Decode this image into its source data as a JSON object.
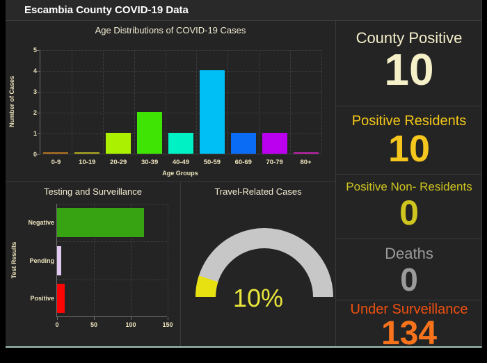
{
  "header": {
    "title": "Escambia County COVID-19 Data"
  },
  "chart_data": [
    {
      "type": "bar",
      "title": "Age Distributions of COVID-19 Cases",
      "xlabel": "Age Groups",
      "ylabel": "Number of Cases",
      "categories": [
        "0-9",
        "10-19",
        "20-29",
        "30-39",
        "40-49",
        "50-59",
        "60-69",
        "70-79",
        "80+"
      ],
      "values": [
        0,
        0,
        1,
        2,
        1,
        4,
        1,
        1,
        0
      ],
      "bar_colors": [
        "#b5731d",
        "#b2ab1e",
        "#aaf000",
        "#3fe405",
        "#00f2c4",
        "#00bff5",
        "#0a6cf5",
        "#bb00f0",
        "#c122ad"
      ],
      "ylim": [
        0,
        5
      ],
      "yticks": [
        0,
        1,
        2,
        3,
        4,
        5
      ],
      "grid": "dotted"
    },
    {
      "type": "bar",
      "orientation": "horizontal",
      "title": "Testing and Surveillance",
      "ylabel": "Test Results",
      "categories": [
        "Negative",
        "Pending",
        "Positive"
      ],
      "values": [
        118,
        6,
        10
      ],
      "bar_colors": [
        "#37a313",
        "#e2c9f1",
        "#fb0505"
      ],
      "xlim": [
        0,
        150
      ],
      "xticks": [
        0,
        50,
        100,
        150
      ],
      "grid": "dotted"
    },
    {
      "type": "gauge",
      "title": "Travel-Related Cases",
      "value_pct": 10,
      "value_label": "10%",
      "range": [
        0,
        100
      ],
      "track_color": "#c7c7c7",
      "fill_color": "#e8e112",
      "text_color": "#e9e63c"
    }
  ],
  "stats": [
    {
      "label": "County Positive",
      "value": "10",
      "label_color": "#f5efcb",
      "value_color": "#f5f0c8"
    },
    {
      "label": "Positive Residents",
      "value": "10",
      "label_color": "#f3c718",
      "value_color": "#f5c61d"
    },
    {
      "label": "Positive Non- Residents",
      "value": "0",
      "label_color": "#cfc51f",
      "value_color": "#cfc51f"
    },
    {
      "label": "Deaths",
      "value": "0",
      "label_color": "#9b9b9b",
      "value_color": "#9b9b9b"
    },
    {
      "label": "Under Surveillance",
      "value": "134",
      "label_color": "#f0500f",
      "value_color": "#f8731c"
    }
  ]
}
